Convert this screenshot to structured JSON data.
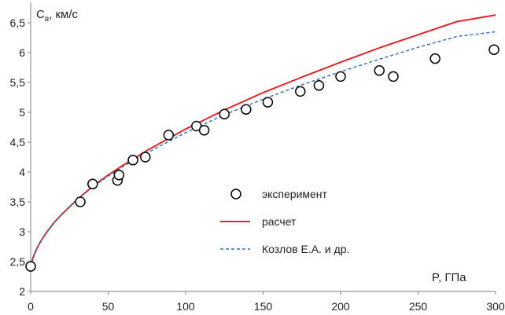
{
  "chart_data": {
    "type": "scatter",
    "title": "",
    "ylabel_main": "C",
    "ylabel_sub": "в",
    "ylabel_unit": ",  км/с",
    "xlabel": "P, ГПа",
    "xlim": [
      0,
      300
    ],
    "ylim": [
      2,
      6.5
    ],
    "x_ticks": [
      0,
      50,
      100,
      150,
      200,
      250,
      300
    ],
    "y_ticks": [
      2,
      2.5,
      3,
      3.5,
      4,
      4.5,
      5,
      5.5,
      6,
      6.5
    ],
    "x_tick_labels": [
      "0",
      "50",
      "100",
      "150",
      "200",
      "250",
      "300"
    ],
    "y_tick_labels": [
      "2",
      "2,5",
      "3",
      "3,5",
      "4",
      "4,5",
      "5",
      "5,5",
      "6",
      "6,5"
    ],
    "grid": false,
    "legend_position": "center-right",
    "series": [
      {
        "name": "эксперимент",
        "kind": "markers",
        "marker": "open-circle",
        "color": "#000000",
        "x": [
          0,
          32,
          40,
          56,
          57,
          66,
          74,
          89,
          107,
          112,
          125,
          139,
          153,
          174,
          186,
          200,
          225,
          234,
          261,
          299
        ],
        "y": [
          2.42,
          3.5,
          3.8,
          3.86,
          3.95,
          4.2,
          4.25,
          4.62,
          4.77,
          4.7,
          4.97,
          5.05,
          5.17,
          5.35,
          5.45,
          5.6,
          5.7,
          5.6,
          5.9,
          6.05
        ]
      },
      {
        "name": "расчет",
        "kind": "line",
        "style": "solid",
        "color": "#e0262b",
        "x": [
          0,
          1,
          2,
          4,
          6,
          10,
          15,
          20,
          30,
          40,
          50,
          60,
          75,
          100,
          125,
          150,
          175,
          200,
          225,
          250,
          275,
          300
        ],
        "y": [
          2.42,
          2.52,
          2.6,
          2.72,
          2.82,
          2.98,
          3.15,
          3.29,
          3.54,
          3.76,
          3.95,
          4.12,
          4.36,
          4.72,
          5.04,
          5.33,
          5.59,
          5.84,
          6.08,
          6.3,
          6.52,
          6.63
        ]
      },
      {
        "name": "Козлов Е.А. и др.",
        "kind": "line",
        "style": "dashed",
        "color": "#3c6fb4",
        "x": [
          0,
          1,
          2,
          4,
          6,
          10,
          15,
          20,
          30,
          40,
          50,
          60,
          75,
          100,
          125,
          150,
          175,
          200,
          225,
          250,
          275,
          300
        ],
        "y": [
          2.42,
          2.52,
          2.6,
          2.72,
          2.82,
          2.98,
          3.15,
          3.29,
          3.54,
          3.75,
          3.93,
          4.1,
          4.32,
          4.66,
          4.96,
          5.22,
          5.46,
          5.68,
          5.89,
          6.09,
          6.27,
          6.35
        ]
      }
    ]
  }
}
